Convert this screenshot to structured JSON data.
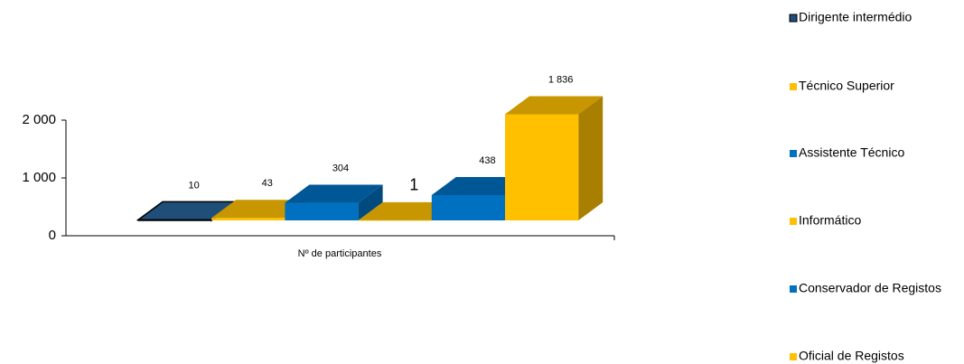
{
  "chart_data": {
    "type": "bar3d",
    "categories": [
      "Nº de participantes"
    ],
    "series": [
      {
        "name": "Dirigente intermédio",
        "color": "#1f4e79",
        "values": [
          10
        ]
      },
      {
        "name": "Técnico Superior",
        "color": "#ffc000",
        "values": [
          43
        ]
      },
      {
        "name": "Assistente Técnico",
        "color": "#0070c0",
        "values": [
          304
        ]
      },
      {
        "name": "Informático",
        "color": "#ffc000",
        "values": [
          1
        ]
      },
      {
        "name": "Conservador de Registos",
        "color": "#0070c0",
        "values": [
          438
        ]
      },
      {
        "name": "Oficial de Registos",
        "color": "#ffc000",
        "values": [
          1836
        ],
        "value_labels": [
          "1 836"
        ]
      }
    ],
    "ylim": [
      0,
      2000
    ],
    "yticks": [
      0,
      {
        "value": 1000,
        "label": "1 000"
      },
      {
        "value": 2000,
        "label": "2 000"
      }
    ],
    "legend": "right"
  }
}
